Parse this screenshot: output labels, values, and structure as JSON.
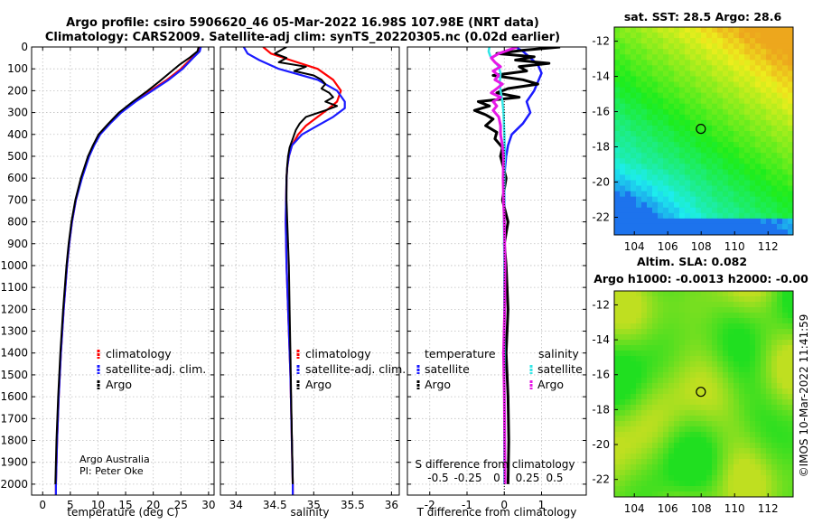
{
  "figure": {
    "title_line1": "Argo profile: csiro 5906620_46 05-Mar-2022 16.98S 107.98E (NRT data)",
    "title_line2": "Climatology: CARS2009. Satellite-adj clim: synTS_20220305.nc (0.02d earlier)",
    "timestamp": "©IMOS 10-Mar-2022 11:41:59",
    "credit_line1": "Argo Australia",
    "credit_line2": "PI: Peter Oke"
  },
  "colors": {
    "climatology": "#ff0000",
    "satellite": "#1a1aff",
    "argo": "#000000",
    "sat_salinity": "#33e6e6",
    "argo_salinity": "#e619e6"
  },
  "chart_data": [
    {
      "id": "temperature",
      "type": "line",
      "xlabel": "temperature (deg C)",
      "xlim": [
        -2,
        31
      ],
      "xticks": [
        0,
        5,
        10,
        15,
        20,
        25,
        30
      ],
      "ylim": [
        0,
        2050
      ],
      "yticks": [
        0,
        100,
        200,
        300,
        400,
        500,
        600,
        700,
        800,
        900,
        1000,
        1100,
        1200,
        1300,
        1400,
        1500,
        1600,
        1700,
        1800,
        1900,
        2000
      ],
      "legend": [
        "climatology",
        "satellite-adj. clim.",
        "Argo"
      ],
      "series": [
        {
          "name": "climatology",
          "depth": [
            0,
            20,
            50,
            100,
            150,
            200,
            250,
            300,
            350,
            400,
            450,
            500,
            600,
            700,
            800,
            900,
            1000,
            1200,
            1400,
            1600,
            1800,
            2000,
            2050
          ],
          "values": [
            28.3,
            28.2,
            27.0,
            25.0,
            22.5,
            19.5,
            16.5,
            14.0,
            12.0,
            10.2,
            9.2,
            8.3,
            7.0,
            6.0,
            5.3,
            4.8,
            4.4,
            3.8,
            3.3,
            2.9,
            2.6,
            2.4,
            2.4
          ]
        },
        {
          "name": "satellite-adj. clim.",
          "depth": [
            0,
            20,
            50,
            100,
            150,
            200,
            250,
            300,
            350,
            400,
            450,
            500,
            600,
            700,
            800,
            900,
            1000,
            1200,
            1400,
            1600,
            1800,
            2000,
            2050
          ],
          "values": [
            28.6,
            28.4,
            27.2,
            25.3,
            22.8,
            19.8,
            16.8,
            14.2,
            12.2,
            10.4,
            9.3,
            8.4,
            7.1,
            6.0,
            5.3,
            4.8,
            4.4,
            3.8,
            3.3,
            2.9,
            2.6,
            2.4,
            2.4
          ]
        },
        {
          "name": "Argo",
          "depth": [
            0,
            20,
            50,
            80,
            120,
            160,
            200,
            250,
            300,
            350,
            400,
            450,
            500,
            600,
            700,
            800,
            900,
            1000,
            1200,
            1400,
            1600,
            1800,
            2000
          ],
          "values": [
            28.2,
            28.0,
            26.5,
            24.8,
            22.9,
            21.0,
            19.0,
            16.3,
            13.8,
            11.9,
            10.1,
            9.1,
            8.2,
            6.9,
            5.9,
            5.2,
            4.7,
            4.3,
            3.7,
            3.2,
            2.8,
            2.5,
            2.3
          ]
        }
      ]
    },
    {
      "id": "salinity",
      "type": "line",
      "xlabel": "salinity",
      "xlim": [
        33.8,
        36.1
      ],
      "xticks": [
        34,
        34.5,
        35,
        35.5,
        36
      ],
      "ylim": [
        0,
        2050
      ],
      "legend": [
        "climatology",
        "satellite-adj. clim.",
        "Argo"
      ],
      "series": [
        {
          "name": "climatology",
          "depth": [
            0,
            30,
            60,
            100,
            150,
            200,
            250,
            280,
            320,
            360,
            400,
            450,
            500,
            550,
            600,
            800,
            1000,
            1500,
            2000,
            2050
          ],
          "values": [
            34.35,
            34.45,
            34.7,
            35.05,
            35.25,
            35.35,
            35.3,
            35.2,
            35.05,
            34.9,
            34.8,
            34.72,
            34.68,
            34.66,
            34.65,
            34.64,
            34.65,
            34.7,
            34.73,
            34.73
          ]
        },
        {
          "name": "satellite-adj. clim.",
          "depth": [
            0,
            30,
            60,
            100,
            150,
            200,
            250,
            280,
            320,
            360,
            400,
            450,
            500,
            550,
            600,
            800,
            1000,
            1500,
            2000,
            2050
          ],
          "values": [
            34.1,
            34.15,
            34.3,
            34.55,
            35.05,
            35.3,
            35.4,
            35.4,
            35.25,
            35.05,
            34.85,
            34.72,
            34.68,
            34.66,
            34.65,
            34.64,
            34.65,
            34.7,
            34.73,
            34.73
          ]
        },
        {
          "name": "Argo",
          "depth": [
            0,
            10,
            30,
            50,
            70,
            90,
            110,
            130,
            150,
            170,
            190,
            210,
            230,
            250,
            270,
            290,
            320,
            350,
            380,
            420,
            460,
            500,
            540,
            600,
            700,
            800,
            900,
            1000,
            1200,
            1400,
            1600,
            1800,
            2000
          ],
          "values": [
            34.65,
            34.6,
            34.5,
            34.65,
            34.55,
            34.9,
            34.75,
            35.0,
            35.1,
            35.15,
            35.1,
            35.2,
            35.25,
            35.15,
            35.3,
            35.15,
            34.9,
            34.82,
            34.77,
            34.73,
            34.69,
            34.67,
            34.66,
            34.65,
            34.65,
            34.66,
            34.67,
            34.68,
            34.69,
            34.7,
            34.71,
            34.72,
            34.73
          ]
        }
      ]
    },
    {
      "id": "differences",
      "type": "line",
      "xlabel": "T difference from climatology",
      "top_label": "S difference from climatology",
      "xlim": [
        -2.6,
        2.2
      ],
      "xticks": [
        -2,
        -1,
        0,
        1
      ],
      "s_ticks": [
        "-0.5",
        "-0.25",
        "0",
        "0.25",
        "0.5"
      ],
      "ylim": [
        0,
        2050
      ],
      "legend_titles": [
        "temperature",
        "salinity"
      ],
      "legend": [
        "satellite",
        "Argo",
        "satellite",
        "Argo"
      ],
      "series": [
        {
          "name": "T satellite",
          "depth": [
            0,
            20,
            50,
            80,
            120,
            160,
            200,
            250,
            300,
            350,
            400,
            450,
            500,
            550,
            600,
            1000,
            2000
          ],
          "values": [
            0.3,
            0.5,
            0.7,
            0.9,
            1.0,
            0.9,
            0.8,
            0.6,
            0.7,
            0.5,
            0.2,
            0.1,
            0.05,
            0.02,
            0.0,
            0.0,
            0.0
          ]
        },
        {
          "name": "T Argo",
          "depth": [
            0,
            15,
            30,
            45,
            60,
            75,
            90,
            110,
            130,
            150,
            170,
            190,
            210,
            230,
            250,
            270,
            290,
            310,
            330,
            360,
            390,
            420,
            460,
            500,
            600,
            700,
            800,
            900,
            1000,
            1200,
            1400,
            1600,
            1800,
            2000
          ],
          "values": [
            1.5,
            0.5,
            -0.2,
            0.8,
            0.3,
            1.2,
            0.4,
            0.6,
            -0.3,
            0.5,
            0.9,
            0.1,
            -0.2,
            0.4,
            -0.7,
            -0.4,
            -0.8,
            -0.5,
            -0.3,
            -0.5,
            -0.2,
            -0.25,
            -0.05,
            -0.1,
            0.05,
            -0.05,
            0.1,
            0.0,
            0.05,
            0.1,
            0.05,
            0.1,
            0.12,
            0.1
          ]
        },
        {
          "name": "S satellite",
          "depth": [
            0,
            20,
            40,
            60,
            90,
            120,
            160,
            200,
            250,
            300,
            350,
            400,
            450,
            500,
            550,
            600,
            800,
            1000,
            2000
          ],
          "values": [
            -0.4,
            -0.42,
            -0.38,
            -0.3,
            -0.15,
            -0.1,
            -0.12,
            -0.1,
            -0.05,
            -0.02,
            -0.01,
            0.0,
            0.01,
            0.02,
            0.0,
            0.0,
            -0.01,
            0.0,
            0.0
          ]
        },
        {
          "name": "S Argo",
          "depth": [
            0,
            15,
            30,
            50,
            70,
            90,
            110,
            130,
            150,
            170,
            190,
            210,
            230,
            250,
            270,
            290,
            320,
            360,
            400,
            450,
            500,
            600,
            700,
            800,
            1000,
            1200,
            1400,
            1600,
            1800,
            2000
          ],
          "values": [
            0.35,
            0.1,
            -0.15,
            -0.35,
            -0.25,
            -0.1,
            -0.3,
            -0.15,
            -0.25,
            -0.05,
            -0.2,
            -0.35,
            -0.1,
            -0.3,
            -0.2,
            -0.3,
            -0.15,
            -0.1,
            -0.1,
            -0.05,
            -0.02,
            -0.03,
            -0.02,
            0.0,
            0.02,
            0.01,
            -0.02,
            0.0,
            0.01,
            0.02
          ]
        }
      ]
    },
    {
      "id": "sst_map",
      "type": "heatmap",
      "title": "sat. SST: 28.5 Argo: 28.6",
      "lon_ticks": [
        "104",
        "106",
        "108",
        "110",
        "112"
      ],
      "lat_ticks": [
        "-12",
        "-14",
        "-16",
        "-18",
        "-20",
        "-22"
      ],
      "lon_range": [
        102.8,
        113.5
      ],
      "lat_range": [
        -23.0,
        -11.2
      ],
      "float_position": {
        "lon": 107.98,
        "lat": -16.98
      }
    },
    {
      "id": "sla_map",
      "type": "heatmap",
      "title_line1": "Altim. SLA: 0.082",
      "title_line2": "Argo h1000: -0.0013 h2000: -0.00",
      "lon_ticks": [
        "104",
        "106",
        "108",
        "110",
        "112"
      ],
      "lat_ticks": [
        "-12",
        "-14",
        "-16",
        "-18",
        "-20",
        "-22"
      ],
      "lon_range": [
        102.8,
        113.5
      ],
      "lat_range": [
        -23.0,
        -11.2
      ],
      "float_position": {
        "lon": 107.98,
        "lat": -16.98
      }
    }
  ]
}
